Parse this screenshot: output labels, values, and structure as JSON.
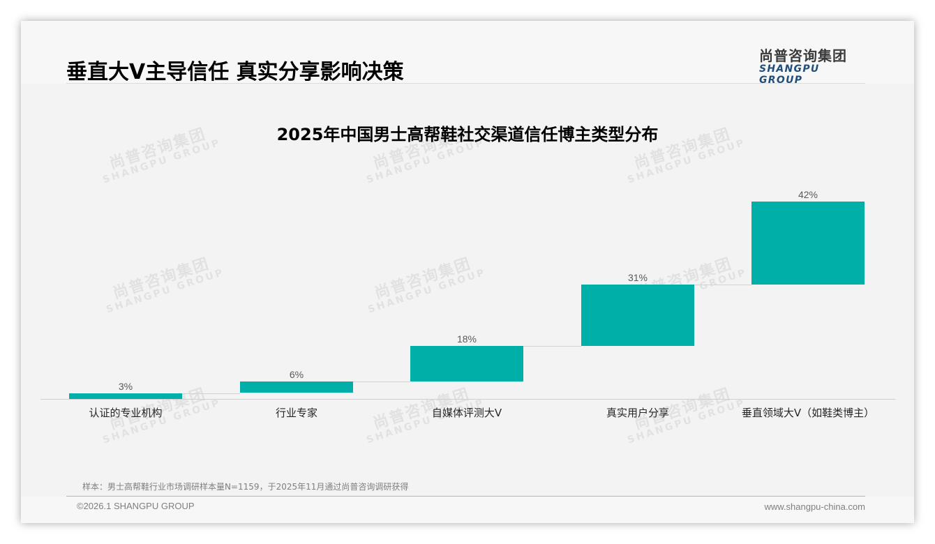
{
  "header": {
    "title": "垂直大V主导信任 真实分享影响决策",
    "logo_cn": "尚普咨询集团",
    "logo_en": "SHANGPU GROUP"
  },
  "watermark": {
    "cn": "尚普咨询集团",
    "en": "SHANGPU GROUP"
  },
  "chart": {
    "title": "2025年中国男士高帮鞋社交渠道信任博主类型分布",
    "bar_color": "#00B0A8",
    "bars": [
      {
        "label": "认证的专业机构",
        "value_label": "3%"
      },
      {
        "label": "行业专家",
        "value_label": "6%"
      },
      {
        "label": "自媒体评测大V",
        "value_label": "18%"
      },
      {
        "label": "真实用户分享",
        "value_label": "31%"
      },
      {
        "label": "垂直领域大V（如鞋类博主）",
        "value_label": "42%"
      }
    ]
  },
  "chart_data": {
    "type": "bar",
    "subtype": "waterfall",
    "title": "2025年中国男士高帮鞋社交渠道信任博主类型分布",
    "categories": [
      "认证的专业机构",
      "行业专家",
      "自媒体评测大V",
      "真实用户分享",
      "垂直领域大V（如鞋类博主）"
    ],
    "values": [
      3,
      6,
      18,
      31,
      42
    ],
    "value_unit": "%",
    "cumulative_start": [
      0,
      3,
      9,
      27,
      58
    ],
    "cumulative_end": [
      3,
      9,
      27,
      58,
      100
    ],
    "xlabel": "",
    "ylabel": "",
    "ylim": [
      0,
      100
    ],
    "grid": false,
    "legend": "none",
    "color": "#00B0A8"
  },
  "footer": {
    "note": "样本：男士高帮鞋行业市场调研样本量N=1159，于2025年11月通过尚普咨询调研获得",
    "copyright": "©2026.1 SHANGPU GROUP",
    "website": "www.shangpu-china.com"
  }
}
